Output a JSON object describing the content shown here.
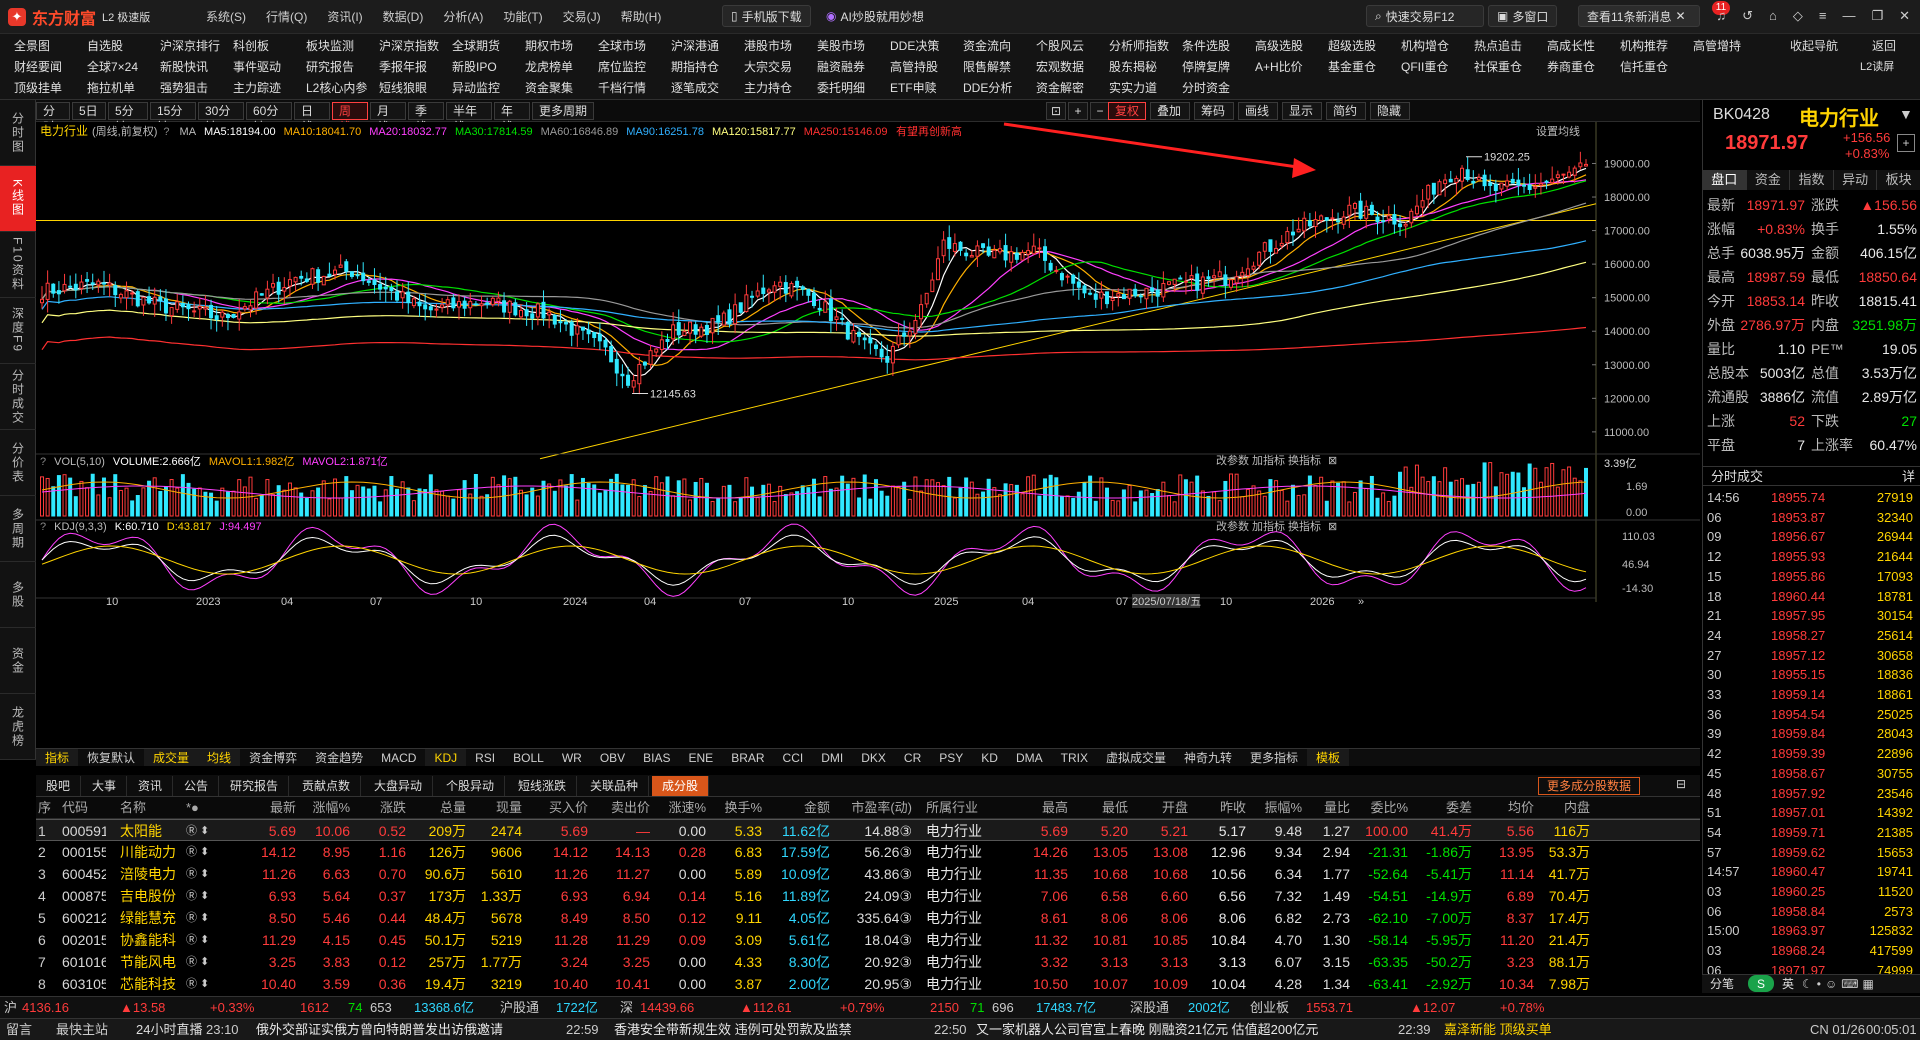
{
  "app": {
    "name": "东方财富",
    "edition": "L2 极速版",
    "logo_icon": "eastmoney-logo-icon"
  },
  "sysmenu": [
    "系统(S)",
    "行情(Q)",
    "资讯(I)",
    "数据(D)",
    "分析(A)",
    "功能(T)",
    "交易(J)",
    "帮助(H)"
  ],
  "titlebar": {
    "mobile": "手机版下载",
    "ai": "AI炒股就用妙想",
    "search": "快速交易F12",
    "multiwin": "多窗口",
    "news": "查看11条新消息",
    "news_badge": "11"
  },
  "menu_rows": [
    [
      "全景图",
      "自选股",
      "沪深京排行",
      "科创板",
      "板块监测",
      "沪深京指数",
      "全球期货",
      "期权市场",
      "全球市场",
      "沪深港通",
      "港股市场",
      "美股市场",
      "DDE决策",
      "资金流向",
      "个股风云",
      "分析师指数",
      "条件选股",
      "高级选股",
      "超级选股",
      "机构增仓",
      "热点追击",
      "高成长性",
      "机构推荐",
      "高管增持"
    ],
    [
      "财经要闻",
      "全球7×24",
      "新股快讯",
      "事件驱动",
      "研究报告",
      "季报年报",
      "新股IPO",
      "龙虎榜单",
      "席位监控",
      "期指持仓",
      "大宗交易",
      "融资融券",
      "高管持股",
      "限售解禁",
      "宏观数据",
      "股东揭秘",
      "停牌复牌",
      "A+H比价",
      "基金重仓",
      "QFII重仓",
      "社保重仓",
      "券商重仓",
      "信托重仓"
    ],
    [
      "顶级挂单",
      "拖拉机单",
      "强势狙击",
      "主力踪迹",
      "L2核心内参",
      "短线狼眼",
      "异动监控",
      "资金聚集",
      "千档行情",
      "逐笔成交",
      "主力持仓",
      "委托明细",
      "ETF申赎",
      "DDE分析",
      "资金解密",
      "实实力道",
      "分时资金"
    ]
  ],
  "right_links": [
    "收起导航",
    "返回",
    "L2读屏"
  ],
  "vtabs": [
    "分时图",
    "K线图",
    "F10资料",
    "深度F9",
    "分时成交",
    "分价表",
    "多周期",
    "多股",
    "资金",
    "龙虎榜"
  ],
  "periods": [
    "分时",
    "5日",
    "5分钟",
    "15分钟",
    "30分钟",
    "60分钟",
    "日线",
    "周线",
    "月线",
    "季线",
    "半年线",
    "年线",
    "更多周期"
  ],
  "period_active": "周线",
  "chart_tools": [
    "复权",
    "叠加",
    "筹码",
    "画线",
    "显示",
    "简约",
    "隐藏"
  ],
  "ma_legend": {
    "title": "电力行业",
    "sub": "(周线,前复权)",
    "items": [
      {
        "label": "MA5:18194.00",
        "color": "#ffffff"
      },
      {
        "label": "MA10:18041.70",
        "color": "#ffb000"
      },
      {
        "label": "MA20:18032.77",
        "color": "#ff40ff"
      },
      {
        "label": "MA30:17814.59",
        "color": "#00e000"
      },
      {
        "label": "MA60:16846.89",
        "color": "#9a9a9a"
      },
      {
        "label": "MA90:16251.78",
        "color": "#30b0ff"
      },
      {
        "label": "MA120:15817.77",
        "color": "#ffff80"
      },
      {
        "label": "MA250:15146.09",
        "color": "#ff3030"
      }
    ],
    "setting": "设置均线"
  },
  "annotation": "有望再创新高",
  "kmax_label": "19202.25",
  "kmin_label": "12145.63",
  "vol_legend": {
    "head": "VOL(5,10)",
    "v": "VOLUME:2.666亿",
    "m1": "MAVOL1:1.982亿",
    "m2": "MAVOL2:1.871亿",
    "vol_max": "3.39亿",
    "ticks": [
      "1.69",
      "0.00"
    ]
  },
  "kdj_legend": {
    "head": "KDJ(9,3,3)",
    "k": "K:60.710",
    "d": "D:43.817",
    "j": "J:94.497",
    "ticks": [
      "110.03",
      "46.94",
      "-14.30"
    ]
  },
  "sub_tools": [
    "改参数",
    "加指标",
    "换指标"
  ],
  "xaxis": {
    "labels": [
      "10",
      "2023",
      "04",
      "07",
      "10",
      "2024",
      "04",
      "07",
      "10",
      "2025",
      "04",
      "07",
      "2025/07/18/五",
      "10",
      "2026"
    ]
  },
  "chart_data": {
    "type": "candlestick",
    "title": "电力行业",
    "period": "周线",
    "y_ticks": [
      19000,
      18000,
      17000,
      16000,
      15000,
      14000,
      13000,
      12000,
      11000
    ],
    "ylim": [
      10400,
      19700
    ],
    "high": 19202.25,
    "low": 12145.63,
    "last": 18971.97,
    "trendlines": [
      {
        "name": "horizontal",
        "from": 17300,
        "to": 17300
      },
      {
        "name": "rising",
        "from": 10200,
        "to": 17800
      }
    ],
    "note": "price path approximated"
  },
  "ind_tabs": [
    "指标",
    "恢复默认",
    "成交量",
    "均线",
    "资金博弈",
    "资金趋势",
    "MACD",
    "KDJ",
    "RSI",
    "BOLL",
    "WR",
    "OBV",
    "BIAS",
    "ENE",
    "BRAR",
    "CCI",
    "DMI",
    "DKX",
    "CR",
    "PSY",
    "KD",
    "DMA",
    "TRIX",
    "虚拟成交量",
    "神奇九转",
    "更多指标",
    "模板"
  ],
  "ind_active": [
    "成交量",
    "均线",
    "KDJ"
  ],
  "table_tabs": [
    "股吧",
    "大事",
    "资讯",
    "公告",
    "研究报告",
    "贡献点数",
    "大盘异动",
    "个股异动",
    "短线涨跌",
    "关联品种",
    "成分股"
  ],
  "table_active": "成分股",
  "table_more": "更多成分股数据",
  "table_head": [
    "序",
    "代码",
    "名称",
    "",
    "最新",
    "涨幅%",
    "涨跌",
    "总量",
    "现量",
    "买入价",
    "卖出价",
    "涨速%",
    "换手%",
    "金额",
    "市盈率(动)",
    "所属行业",
    "最高",
    "最低",
    "开盘",
    "昨收",
    "振幅%",
    "量比",
    "委比%",
    "委差",
    "均价",
    "内盘"
  ],
  "table_rows": [
    [
      "1",
      "000591",
      "太阳能",
      "5.69",
      "10.06",
      "0.52",
      "209万",
      "2474",
      "5.69",
      "—",
      "0.00",
      "5.33",
      "11.62亿",
      "14.88③",
      "电力行业",
      "5.69",
      "5.20",
      "5.21",
      "5.17",
      "9.48",
      "1.27",
      "100.00",
      "41.4万",
      "5.56",
      "116万"
    ],
    [
      "2",
      "000155",
      "川能动力",
      "14.12",
      "8.95",
      "1.16",
      "126万",
      "9606",
      "14.12",
      "14.13",
      "0.28",
      "6.83",
      "17.59亿",
      "56.26③",
      "电力行业",
      "14.26",
      "13.05",
      "13.08",
      "12.96",
      "9.34",
      "2.94",
      "-21.31",
      "-1.86万",
      "13.95",
      "53.3万"
    ],
    [
      "3",
      "600452",
      "涪陵电力",
      "11.26",
      "6.63",
      "0.70",
      "90.6万",
      "5610",
      "11.26",
      "11.27",
      "0.00",
      "5.89",
      "10.09亿",
      "43.86③",
      "电力行业",
      "11.35",
      "10.68",
      "10.68",
      "10.56",
      "6.34",
      "1.77",
      "-52.64",
      "-5.41万",
      "11.14",
      "41.7万"
    ],
    [
      "4",
      "000875",
      "吉电股份",
      "6.93",
      "5.64",
      "0.37",
      "173万",
      "1.33万",
      "6.93",
      "6.94",
      "0.14",
      "5.16",
      "11.89亿",
      "24.09③",
      "电力行业",
      "7.06",
      "6.58",
      "6.60",
      "6.56",
      "7.32",
      "1.49",
      "-54.51",
      "-14.9万",
      "6.89",
      "70.4万"
    ],
    [
      "5",
      "600212",
      "绿能慧充",
      "8.50",
      "5.46",
      "0.44",
      "48.4万",
      "5678",
      "8.49",
      "8.50",
      "0.12",
      "9.11",
      "4.05亿",
      "335.64③",
      "电力行业",
      "8.61",
      "8.06",
      "8.06",
      "8.06",
      "6.82",
      "2.73",
      "-62.10",
      "-7.00万",
      "8.37",
      "17.4万"
    ],
    [
      "6",
      "002015",
      "协鑫能科",
      "11.29",
      "4.15",
      "0.45",
      "50.1万",
      "5219",
      "11.28",
      "11.29",
      "0.09",
      "3.09",
      "5.61亿",
      "18.04③",
      "电力行业",
      "11.32",
      "10.81",
      "10.85",
      "10.84",
      "4.70",
      "1.30",
      "-58.14",
      "-5.95万",
      "11.20",
      "21.4万"
    ],
    [
      "7",
      "601016",
      "节能风电",
      "3.25",
      "3.83",
      "0.12",
      "257万",
      "1.77万",
      "3.24",
      "3.25",
      "0.00",
      "4.33",
      "8.30亿",
      "20.92③",
      "电力行业",
      "3.32",
      "3.13",
      "3.13",
      "3.13",
      "6.07",
      "3.15",
      "-63.35",
      "-50.2万",
      "3.23",
      "88.1万"
    ],
    [
      "8",
      "603105",
      "芯能科技",
      "10.40",
      "3.59",
      "0.36",
      "19.4万",
      "3219",
      "10.40",
      "10.41",
      "0.00",
      "3.87",
      "2.00亿",
      "20.95③",
      "电力行业",
      "10.50",
      "10.07",
      "10.09",
      "10.04",
      "4.28",
      "1.34",
      "-63.41",
      "-2.92万",
      "10.34",
      "7.98万"
    ]
  ],
  "quote": {
    "code": "BK0428",
    "name": "电力行业",
    "price": "18971.97",
    "chg": "+156.56",
    "pct": "+0.83%",
    "tabs": [
      "盘口",
      "资金",
      "指数",
      "异动",
      "板块"
    ],
    "rows": [
      [
        "最新",
        "18971.97",
        "涨跌",
        "▲156.56"
      ],
      [
        "涨幅",
        "+0.83%",
        "换手",
        "1.55%"
      ],
      [
        "总手",
        "6038.95万",
        "金额",
        "406.15亿"
      ],
      [
        "最高",
        "18987.59",
        "最低",
        "18850.64"
      ],
      [
        "今开",
        "18853.14",
        "昨收",
        "18815.41"
      ],
      [
        "外盘",
        "2786.97万",
        "内盘",
        "3251.98万"
      ],
      [
        "量比",
        "1.10",
        "PE™",
        "19.05"
      ],
      [
        "总股本",
        "5003亿",
        "总值",
        "3.53万亿"
      ],
      [
        "流通股",
        "3886亿",
        "流值",
        "2.89万亿"
      ],
      [
        "上涨",
        "52",
        "下跌",
        "27"
      ],
      [
        "平盘",
        "7",
        "上涨率",
        "60.47%"
      ]
    ],
    "trades_title": "分时成交",
    "trades": [
      [
        "14:56",
        "18955.74",
        "27919"
      ],
      [
        "06",
        "18953.87",
        "32340"
      ],
      [
        "09",
        "18956.67",
        "26944"
      ],
      [
        "12",
        "18955.93",
        "21644"
      ],
      [
        "15",
        "18955.86",
        "17093"
      ],
      [
        "18",
        "18960.44",
        "18781"
      ],
      [
        "21",
        "18957.95",
        "30154"
      ],
      [
        "24",
        "18958.27",
        "25614"
      ],
      [
        "27",
        "18957.12",
        "30658"
      ],
      [
        "30",
        "18955.15",
        "18836"
      ],
      [
        "33",
        "18959.14",
        "18861"
      ],
      [
        "36",
        "18954.54",
        "25025"
      ],
      [
        "39",
        "18959.84",
        "28043"
      ],
      [
        "42",
        "18959.39",
        "22896"
      ],
      [
        "45",
        "18958.67",
        "30755"
      ],
      [
        "48",
        "18957.92",
        "23546"
      ],
      [
        "51",
        "18957.01",
        "14392"
      ],
      [
        "54",
        "18959.71",
        "21385"
      ],
      [
        "57",
        "18959.62",
        "15653"
      ],
      [
        "14:57",
        "18960.47",
        "19741"
      ],
      [
        "03",
        "18960.25",
        "11520"
      ],
      [
        "06",
        "18958.84",
        "2573"
      ],
      [
        "15:00",
        "18963.97",
        "125832"
      ],
      [
        "03",
        "18968.24",
        "417599"
      ],
      [
        "06",
        "18971.97",
        "74999"
      ]
    ],
    "bottom": [
      "分笔",
      "英"
    ]
  },
  "tick1": {
    "sh": "沪",
    "sh_v": "4136.16",
    "sh_c": "▲13.58",
    "sh_p": "+0.33%",
    "sh_u": "1612",
    "sh_d": "74",
    "sh_f": "653",
    "sh_amt": "13368.6亿",
    "hgt": "沪股通",
    "hgt_v": "1722亿",
    "sz": "深",
    "sz_v": "14439.66",
    "sz_c": "▲112.61",
    "sz_p": "+0.79%",
    "sz_u": "2150",
    "sz_d": "71",
    "sz_f": "696",
    "sz_amt": "17483.7亿",
    "sgt": "深股通",
    "sgt_v": "2002亿",
    "cy": "创业板",
    "cy_v": "1553.71",
    "cy_c": "▲12.07",
    "cy_p": "+0.78%"
  },
  "tick2": {
    "a": "留言",
    "b": "最快主站",
    "c": "24小时直播",
    "t1": "23:10",
    "n1": "俄外交部证实俄方曾向特朗普发出访俄邀请",
    "t2": "22:59",
    "n2": "香港安全带新规生效 违例可处罚款及监禁",
    "t3": "22:50",
    "n3": "又一家机器人公司官宣上春晚 刚融资21亿元 估值超200亿元",
    "t4": "22:39",
    "n4": "嘉泽新能 顶级买单",
    "date": "CN 01/26",
    "clock": "00:05:01"
  }
}
